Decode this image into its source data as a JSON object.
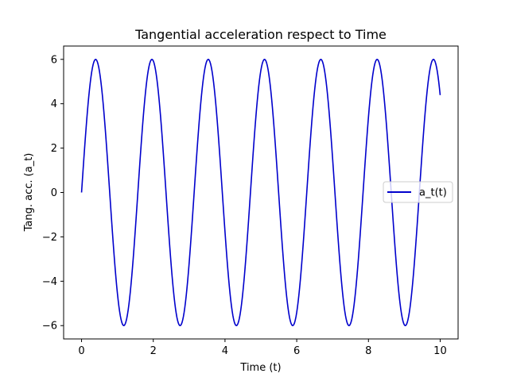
{
  "chart_data": {
    "type": "line",
    "title": "Tangential acceleration respect to Time",
    "xlabel": "Time (t)",
    "ylabel": "Tang. acc. (a_t)",
    "xlim": [
      -0.5,
      10.5
    ],
    "ylim": [
      -6.6,
      6.6
    ],
    "xticks": [
      0,
      2,
      4,
      6,
      8,
      10
    ],
    "yticks": [
      -6,
      -4,
      -2,
      0,
      2,
      4,
      6
    ],
    "xtick_labels": [
      "0",
      "2",
      "4",
      "6",
      "8",
      "10"
    ],
    "ytick_labels": [
      "−6",
      "−4",
      "−2",
      "0",
      "2",
      "4",
      "6"
    ],
    "grid": false,
    "legend_position": "center-right",
    "series": [
      {
        "name": "a_t(t)",
        "color": "#0000cc",
        "amplitude": 6,
        "period": 1.57,
        "x_start": 0,
        "x_end": 10,
        "num_points": 500
      }
    ]
  }
}
